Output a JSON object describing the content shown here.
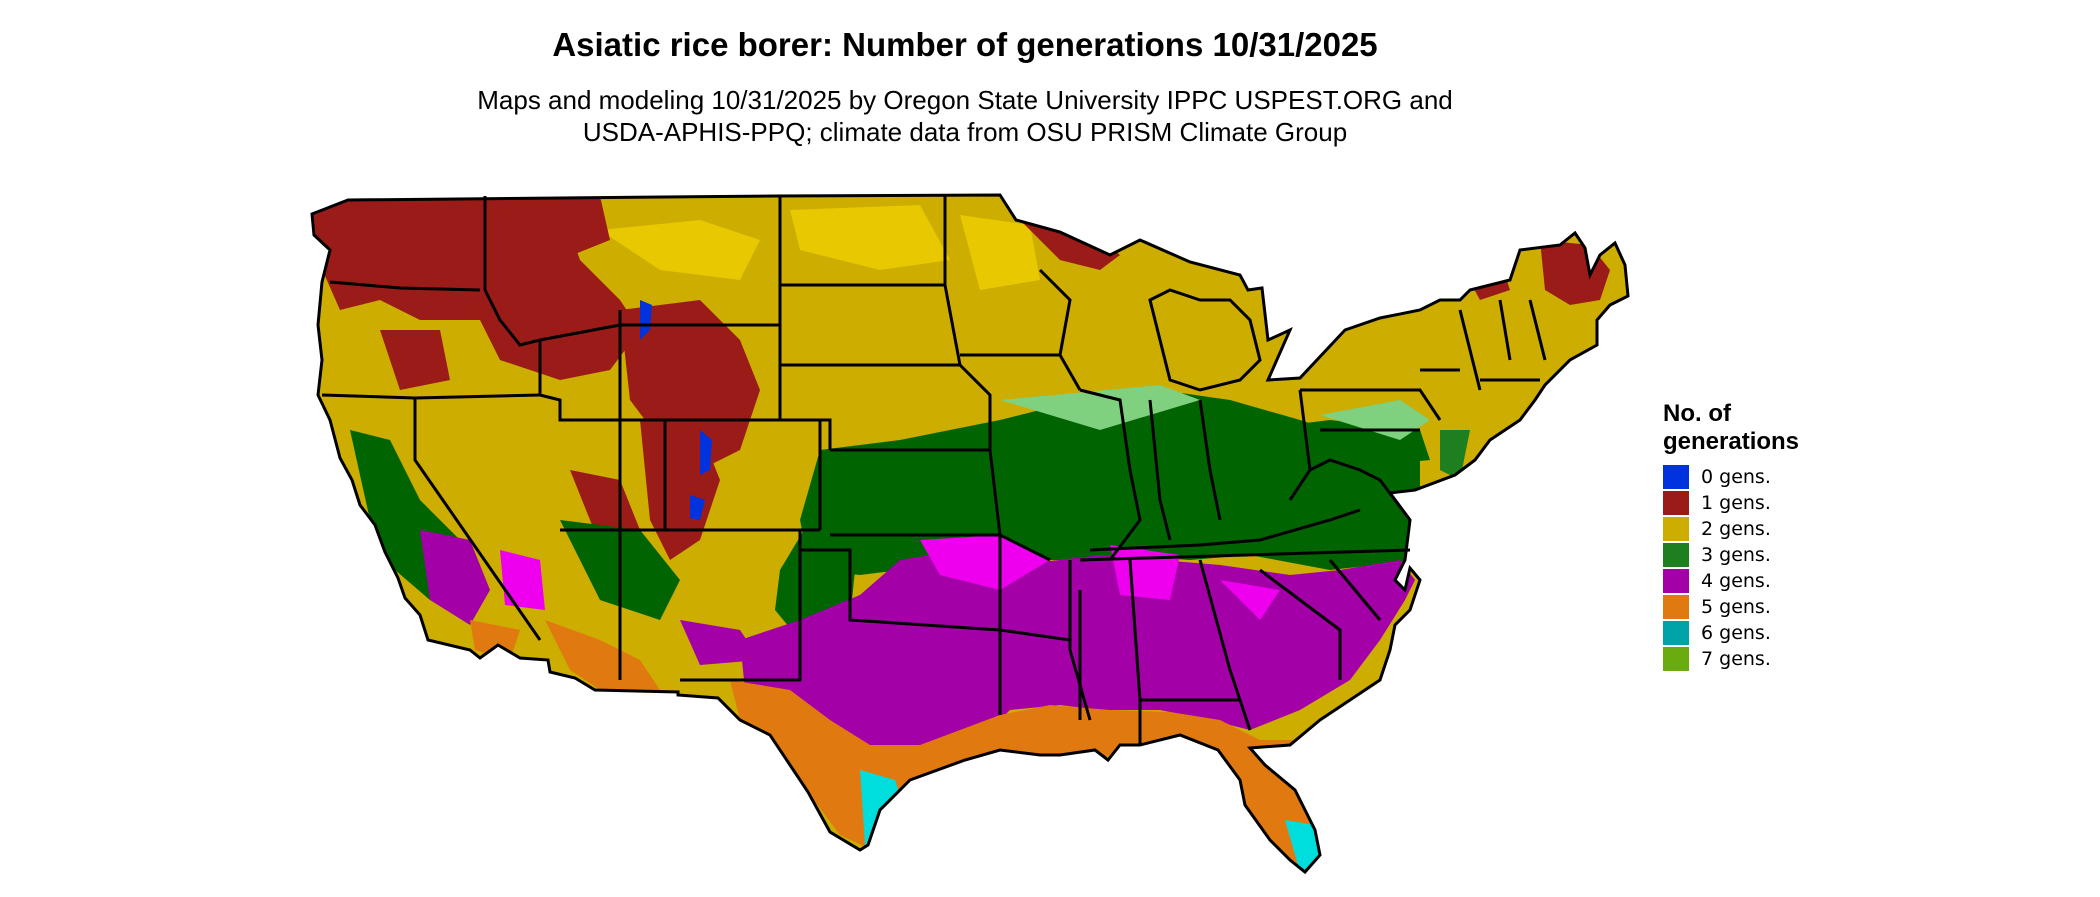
{
  "title": "Asiatic rice borer: Number of generations 10/31/2025",
  "subtitle_line1": "Maps and modeling 10/31/2025 by Oregon State University IPPC USPEST.ORG and",
  "subtitle_line2": "USDA-APHIS-PPQ; climate data from OSU PRISM Climate Group",
  "legend": {
    "title_line1": "No. of",
    "title_line2": "generations",
    "items": [
      {
        "label": "0 gens.",
        "color": "#0033dd"
      },
      {
        "label": "1 gens.",
        "color": "#9a1b17"
      },
      {
        "label": "2 gens.",
        "color": "#ccad00"
      },
      {
        "label": "3 gens.",
        "color": "#1e7f1e"
      },
      {
        "label": "4 gens.",
        "color": "#a300a8"
      },
      {
        "label": "5 gens.",
        "color": "#e07a10"
      },
      {
        "label": "6 gens.",
        "color": "#00a3a8"
      },
      {
        "label": "7 gens.",
        "color": "#6aab10"
      }
    ]
  },
  "map_colors": {
    "state_border": "#000000",
    "gen1_light": "#e8c800",
    "gen3_dark": "#006400",
    "gen3_light": "#7fd07f",
    "gen4_bright": "#ee00ee",
    "gen6_bright": "#00dddd"
  }
}
